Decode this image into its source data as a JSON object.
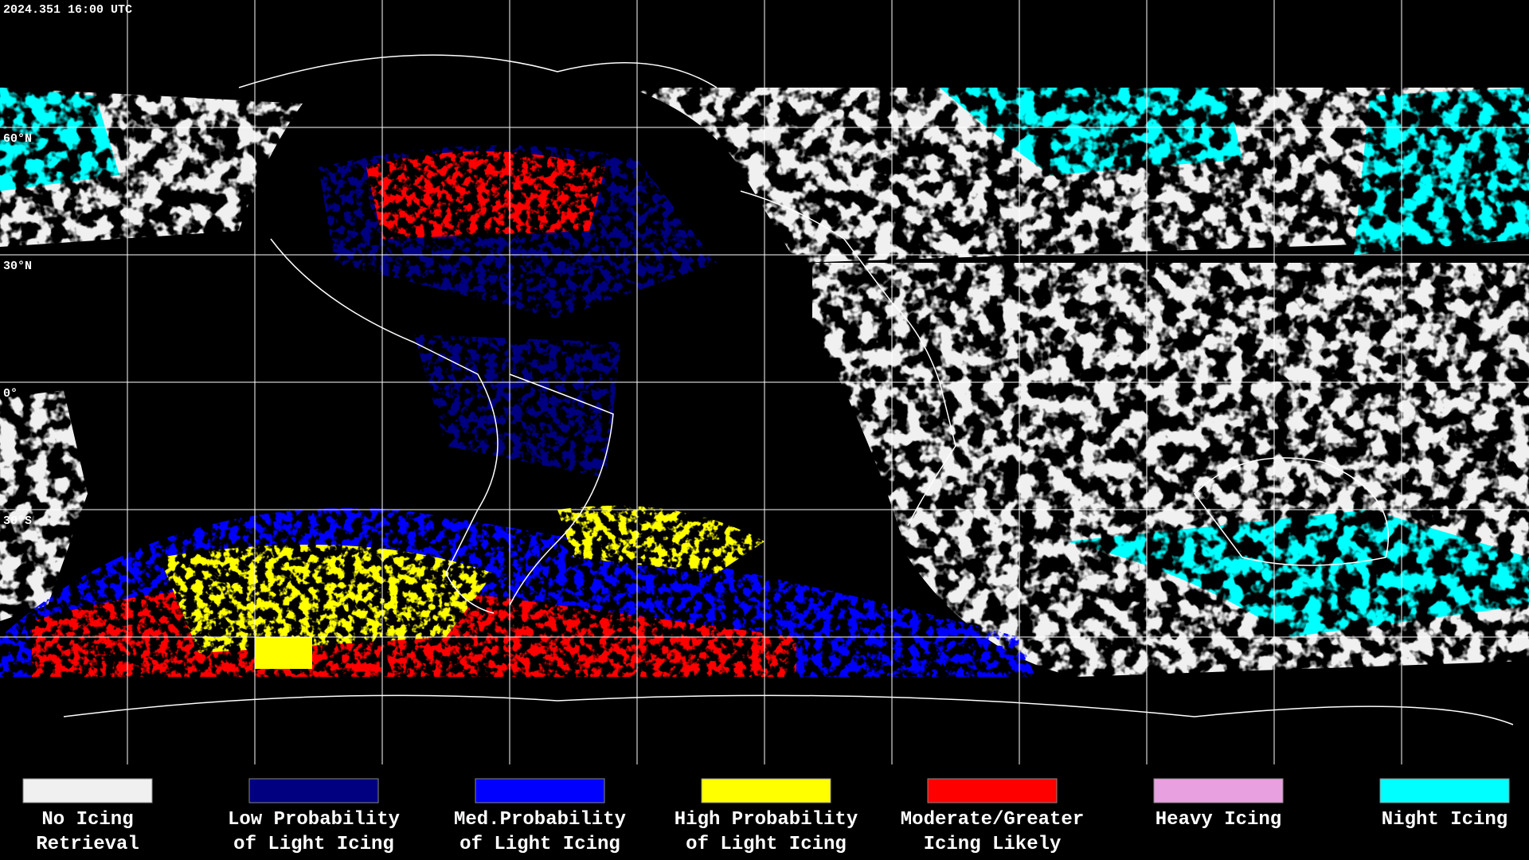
{
  "timestamp": "2024.351 16:00 UTC",
  "lat_labels": [
    "60°N",
    "30°N",
    "0°",
    "30°S"
  ],
  "legend": [
    {
      "lines": [
        "No Icing",
        "Retrieval"
      ],
      "color": "#f0f0f0"
    },
    {
      "lines": [
        "Low Probability",
        "of Light Icing"
      ],
      "color": "#000080"
    },
    {
      "lines": [
        "Med.Probability",
        "of Light Icing"
      ],
      "color": "#0000ff"
    },
    {
      "lines": [
        "High Probability",
        "of Light Icing"
      ],
      "color": "#ffff00"
    },
    {
      "lines": [
        "Moderate/Greater",
        "Icing Likely"
      ],
      "color": "#ff0000"
    },
    {
      "lines": [
        "Heavy Icing"
      ],
      "color": "#e8a0e0"
    },
    {
      "lines": [
        "Night Icing"
      ],
      "color": "#00ffff"
    }
  ]
}
